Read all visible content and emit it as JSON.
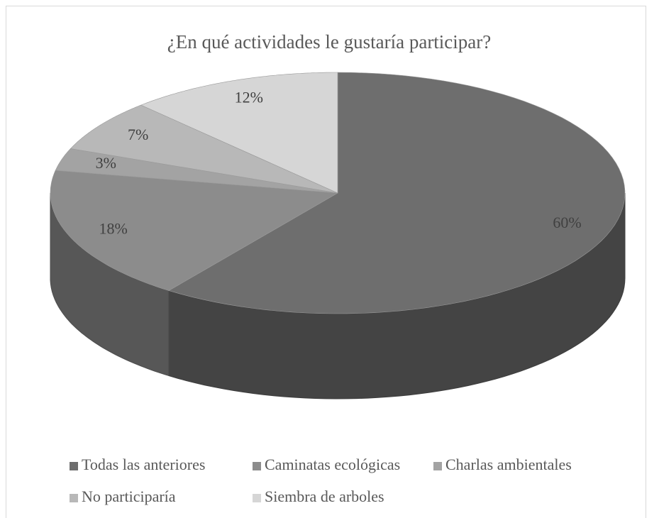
{
  "chart_data": {
    "type": "pie3d",
    "title": "¿En qué actividades le gustaría participar?",
    "categories": [
      "Todas las anteriores",
      "Caminatas ecológicas",
      "Charlas ambientales",
      "No participaría",
      "Siembra de arboles"
    ],
    "values": [
      60,
      18,
      3,
      7,
      12
    ],
    "value_labels": [
      "60%",
      "18%",
      "3%",
      "7%",
      "12%"
    ],
    "colors": [
      "#6e6e6e",
      "#8c8c8c",
      "#a3a3a3",
      "#b8b8b8",
      "#d6d6d6"
    ],
    "legend": "bottom"
  }
}
